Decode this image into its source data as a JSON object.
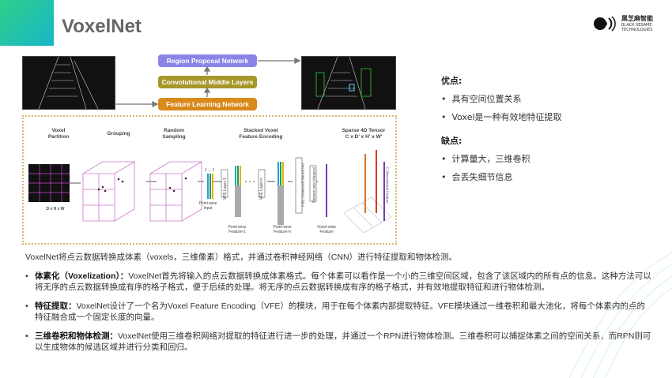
{
  "slide": {
    "title": "VoxelNet",
    "accent_colors": [
      "#2fd08a",
      "#18b6c8"
    ]
  },
  "logo": {
    "cn": "黑芝麻智能",
    "en1": "BLACK SESAME",
    "en2": "TECHNOLOGIES"
  },
  "diagram": {
    "rpn": "Region Proposal Network",
    "cml": "Convolutional Middle Layers",
    "fln": "Feature Learning Network",
    "colors": {
      "rpn": "#8b84e8",
      "cml": "#a8962a",
      "fln": "#d98a1a"
    },
    "stages": [
      "Voxel\nPartition",
      "Grouping",
      "Random\nSampling",
      "Stacked Voxel\nFeature Encoding",
      "Sparse 4D Tensor\nC x D' x H' x W'"
    ],
    "dhw": "D x H x W",
    "ones": "1 ... 1",
    "pw_input": "Point-wise\nInput",
    "vfe1": "VFE Layer-1",
    "vfen": "VFE Layer-n",
    "fcn": "Fully Connected Neural Net",
    "emax": "Element-wise Maxpool",
    "pwf1": "Point-wise\nFeature-1",
    "pwfn": "Point-wise\nFeature-n",
    "vwf": "Voxel-wise\nFeature",
    "cdim": "C-Dimensional Feature"
  },
  "pros": {
    "heading": "优点:",
    "items": [
      "具有空间位置关系",
      "Voxel是一种有效地特征提取"
    ]
  },
  "cons": {
    "heading": "缺点:",
    "items": [
      "计算量大，三维卷积",
      "会丢失细节信息"
    ]
  },
  "body": {
    "intro": "VoxelNet将点云数据转换成体素（voxels，三维像素）格式，并通过卷积神经网络（CNN）进行特征提取和物体检测。",
    "bullets": [
      {
        "term": "体素化（Voxelization）：",
        "text": "VoxelNet首先将输入的点云数据转换成体素格式。每个体素可以看作是一个小的三维空间区域，包含了该区域内的所有点的信息。这种方法可以将无序的点云数据转换成有序的格子格式，便于后续的处理。将无序的点云数据转换成有序的格子格式，并有效地提取特征和进行物体检测。"
      },
      {
        "term": "特征提取：",
        "text": "VoxelNet设计了一个名为Voxel Feature Encoding（VFE）的模块，用于在每个体素内部提取特征。VFE模块通过一维卷积和最大池化，将每个体素内的点的特征融合成一个固定长度的向量。"
      },
      {
        "term": "三维卷积和物体检测：",
        "text": "VoxelNet使用三维卷积网络对提取的特征进行进一步的处理，并通过一个RPN进行物体检测。三维卷积可以捕捉体素之间的空间关系，而RPN则可以生成物体的候选区域并进行分类和回归。"
      }
    ]
  }
}
